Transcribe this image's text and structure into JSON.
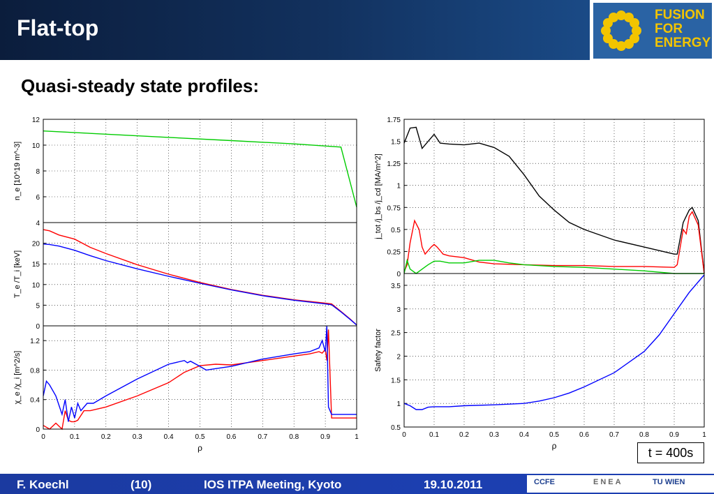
{
  "header": {
    "title": "Flat-top"
  },
  "logo": {
    "lines": [
      "FUSION",
      "FOR",
      "ENERGY"
    ],
    "brand_color": "#f2c400",
    "bg_color": "#2a63a4"
  },
  "subtitle": "Quasi-steady state profiles:",
  "time_label": "t = 400s",
  "footer": {
    "author": "F. Koechl",
    "slide_number": "(10)",
    "meeting": "IOS ITPA Meeting, Kyoto",
    "date": "19.10.2011",
    "logos": [
      "CCFE",
      "ENEA",
      "TU WIEN"
    ]
  },
  "chart_data": [
    {
      "type": "line",
      "id": "ne",
      "ylabel": "n_e [10^19 m^-3]",
      "xlim": [
        0,
        1
      ],
      "ylim": [
        4,
        12
      ],
      "yticks": [
        "4",
        "6",
        "8",
        "10",
        "12"
      ],
      "grid": true,
      "series": [
        {
          "color": "#00cc00",
          "x": [
            0,
            0.2,
            0.4,
            0.6,
            0.8,
            0.95,
            1.0
          ],
          "y": [
            11.1,
            10.85,
            10.6,
            10.35,
            10.1,
            9.85,
            5.2
          ]
        }
      ]
    },
    {
      "type": "line",
      "id": "te",
      "ylabel": "T_e /T_i [keV]",
      "xlim": [
        0,
        1
      ],
      "ylim": [
        0,
        25
      ],
      "yticks": [
        "0",
        "5",
        "10",
        "15",
        "20"
      ],
      "grid": true,
      "series": [
        {
          "color": "#ff0000",
          "x": [
            0,
            0.02,
            0.05,
            0.1,
            0.15,
            0.2,
            0.3,
            0.4,
            0.5,
            0.6,
            0.7,
            0.8,
            0.9,
            0.92,
            0.95,
            0.98,
            1.0
          ],
          "y": [
            23.3,
            23.0,
            22.0,
            21.0,
            19.0,
            17.5,
            14.8,
            12.5,
            10.5,
            8.8,
            7.4,
            6.3,
            5.5,
            5.3,
            3.5,
            1.6,
            0.2
          ]
        },
        {
          "color": "#0000ff",
          "x": [
            0,
            0.02,
            0.05,
            0.1,
            0.15,
            0.2,
            0.3,
            0.4,
            0.5,
            0.6,
            0.7,
            0.8,
            0.9,
            0.92,
            0.95,
            0.98,
            1.0
          ],
          "y": [
            19.8,
            19.7,
            19.3,
            18.3,
            17.0,
            15.8,
            13.8,
            12.0,
            10.3,
            8.7,
            7.3,
            6.2,
            5.3,
            5.1,
            3.4,
            1.5,
            0.2
          ]
        }
      ]
    },
    {
      "type": "line",
      "id": "chi",
      "ylabel": "χ_e /χ_i [m^2/s]",
      "xlabel": "ρ",
      "xlim": [
        0,
        1
      ],
      "ylim": [
        0,
        1.4
      ],
      "xticks": [
        "0",
        "0.1",
        "0.2",
        "0.3",
        "0.4",
        "0.5",
        "0.6",
        "0.7",
        "0.8",
        "0.9",
        "1"
      ],
      "yticks": [
        "0",
        "0.4",
        "0.8",
        "1.2"
      ],
      "grid": true,
      "series": [
        {
          "color": "#ff0000",
          "x": [
            0,
            0.02,
            0.04,
            0.06,
            0.07,
            0.08,
            0.09,
            0.1,
            0.11,
            0.13,
            0.15,
            0.2,
            0.3,
            0.4,
            0.45,
            0.5,
            0.55,
            0.6,
            0.7,
            0.8,
            0.85,
            0.88,
            0.89,
            0.9,
            0.905,
            0.91,
            0.92,
            1.0
          ],
          "y": [
            0.05,
            0.0,
            0.08,
            0.0,
            0.25,
            0.12,
            0.1,
            0.1,
            0.12,
            0.25,
            0.25,
            0.3,
            0.45,
            0.63,
            0.77,
            0.86,
            0.88,
            0.87,
            0.93,
            0.99,
            1.02,
            1.05,
            1.03,
            1.08,
            0.93,
            1.35,
            0.15,
            0.15
          ]
        },
        {
          "color": "#0000ff",
          "x": [
            0,
            0.01,
            0.02,
            0.04,
            0.06,
            0.07,
            0.08,
            0.09,
            0.1,
            0.11,
            0.12,
            0.14,
            0.16,
            0.2,
            0.3,
            0.4,
            0.45,
            0.46,
            0.47,
            0.5,
            0.52,
            0.55,
            0.6,
            0.7,
            0.8,
            0.85,
            0.88,
            0.89,
            0.9,
            0.905,
            0.91,
            0.92,
            0.95,
            1.0
          ],
          "y": [
            0.45,
            0.65,
            0.6,
            0.45,
            0.2,
            0.4,
            0.1,
            0.3,
            0.15,
            0.35,
            0.25,
            0.35,
            0.35,
            0.45,
            0.68,
            0.88,
            0.93,
            0.9,
            0.92,
            0.85,
            0.8,
            0.82,
            0.85,
            0.95,
            1.02,
            1.05,
            1.1,
            1.2,
            1.05,
            1.4,
            0.3,
            0.2,
            0.2,
            0.2
          ]
        }
      ]
    },
    {
      "type": "line",
      "id": "jtot",
      "ylabel": "j_tot /j_bs /j_cd [MA/m^2]",
      "xlim": [
        0,
        1
      ],
      "ylim": [
        0,
        1.75
      ],
      "yticks": [
        "0",
        "0.25",
        "0.5",
        "0.75",
        "1",
        "1.25",
        "1.5",
        "1.75"
      ],
      "grid": true,
      "series": [
        {
          "color": "#000000",
          "x": [
            0,
            0.02,
            0.04,
            0.06,
            0.08,
            0.1,
            0.12,
            0.15,
            0.2,
            0.25,
            0.3,
            0.35,
            0.4,
            0.45,
            0.5,
            0.55,
            0.6,
            0.7,
            0.8,
            0.9,
            0.91,
            0.93,
            0.95,
            0.96,
            0.98,
            1.0
          ],
          "y": [
            1.48,
            1.65,
            1.66,
            1.42,
            1.5,
            1.58,
            1.48,
            1.47,
            1.46,
            1.48,
            1.43,
            1.33,
            1.12,
            0.88,
            0.72,
            0.58,
            0.5,
            0.38,
            0.3,
            0.22,
            0.22,
            0.58,
            0.72,
            0.75,
            0.6,
            0.0
          ]
        },
        {
          "color": "#ff0000",
          "x": [
            0,
            0.01,
            0.02,
            0.035,
            0.05,
            0.06,
            0.07,
            0.09,
            0.1,
            0.11,
            0.13,
            0.15,
            0.2,
            0.25,
            0.3,
            0.4,
            0.5,
            0.6,
            0.7,
            0.8,
            0.9,
            0.91,
            0.93,
            0.94,
            0.95,
            0.96,
            0.98,
            1.0
          ],
          "y": [
            0.02,
            0.1,
            0.35,
            0.6,
            0.5,
            0.3,
            0.22,
            0.3,
            0.33,
            0.3,
            0.22,
            0.2,
            0.18,
            0.13,
            0.11,
            0.1,
            0.09,
            0.09,
            0.08,
            0.08,
            0.07,
            0.1,
            0.5,
            0.45,
            0.65,
            0.7,
            0.55,
            0.0
          ]
        },
        {
          "color": "#00cc00",
          "x": [
            0,
            0.01,
            0.02,
            0.04,
            0.06,
            0.08,
            0.1,
            0.12,
            0.15,
            0.2,
            0.25,
            0.3,
            0.35,
            0.4,
            0.5,
            0.6,
            0.7,
            0.8,
            0.9,
            1.0
          ],
          "y": [
            0.0,
            0.15,
            0.05,
            0.0,
            0.05,
            0.1,
            0.14,
            0.14,
            0.12,
            0.12,
            0.15,
            0.15,
            0.12,
            0.1,
            0.08,
            0.07,
            0.05,
            0.03,
            0.0,
            0.0
          ]
        }
      ]
    },
    {
      "type": "line",
      "id": "q",
      "ylabel": "Safety factor",
      "xlabel": "ρ",
      "xlim": [
        0,
        1
      ],
      "ylim": [
        0.5,
        3.75
      ],
      "xticks": [
        "0",
        "0.1",
        "0.2",
        "0.3",
        "0.4",
        "0.5",
        "0.6",
        "0.7",
        "0.8",
        "0.9",
        "1"
      ],
      "yticks": [
        "0.5",
        "1",
        "1.5",
        "2",
        "2.5",
        "3",
        "3.5"
      ],
      "grid": true,
      "series": [
        {
          "color": "#0000ff",
          "x": [
            0,
            0.02,
            0.04,
            0.06,
            0.08,
            0.1,
            0.15,
            0.2,
            0.3,
            0.4,
            0.45,
            0.5,
            0.55,
            0.6,
            0.7,
            0.8,
            0.85,
            0.9,
            0.95,
            1.0
          ],
          "y": [
            1.0,
            0.95,
            0.87,
            0.87,
            0.92,
            0.93,
            0.93,
            0.95,
            0.97,
            1.0,
            1.05,
            1.12,
            1.22,
            1.35,
            1.65,
            2.1,
            2.45,
            2.9,
            3.35,
            3.72
          ]
        }
      ]
    }
  ]
}
